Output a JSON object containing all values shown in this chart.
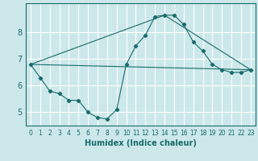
{
  "xlabel": "Humidex (Indice chaleur)",
  "background_color": "#cce8ea",
  "grid_color": "#ffffff",
  "line_color": "#1a6b6b",
  "xlim": [
    -0.5,
    23.5
  ],
  "ylim": [
    4.5,
    9.1
  ],
  "yticks": [
    5,
    6,
    7,
    8
  ],
  "xticks": [
    0,
    1,
    2,
    3,
    4,
    5,
    6,
    7,
    8,
    9,
    10,
    11,
    12,
    13,
    14,
    15,
    16,
    17,
    18,
    19,
    20,
    21,
    22,
    23
  ],
  "line1_x": [
    0,
    1,
    2,
    3,
    4,
    5,
    6,
    7,
    8,
    9,
    10,
    11,
    12,
    13,
    14,
    15,
    16,
    17,
    18,
    19,
    20,
    21,
    22,
    23
  ],
  "line1_y": [
    6.8,
    6.3,
    5.8,
    5.7,
    5.45,
    5.45,
    5.0,
    4.8,
    4.75,
    5.1,
    6.8,
    7.5,
    7.9,
    8.6,
    8.65,
    8.65,
    8.3,
    7.65,
    7.3,
    6.8,
    6.6,
    6.5,
    6.5,
    6.6
  ],
  "line2_x": [
    0,
    23
  ],
  "line2_y": [
    6.8,
    6.6
  ],
  "line3_x": [
    0,
    14,
    23
  ],
  "line3_y": [
    6.8,
    8.65,
    6.6
  ]
}
